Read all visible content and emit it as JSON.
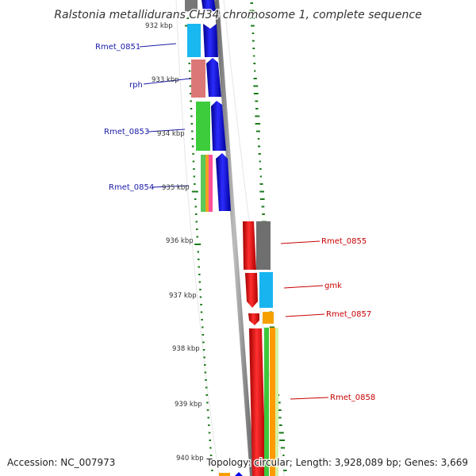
{
  "title": "Ralstonia metallidurans CH34 chromosome 1, complete sequence",
  "footer": {
    "accession": "Accession: NC_007973",
    "topology": "Topology: circular; Length: 3,928,089 bp; Genes: 3,669"
  },
  "kbp_labels": [
    "932 kbp",
    "933 kbp",
    "934 kbp",
    "935 kbp",
    "936 kbp",
    "937 kbp",
    "938 kbp",
    "939 kbp",
    "940 kbp"
  ],
  "gene_labels_left": [
    "Rmet_0851",
    "rph",
    "Rmet_0853",
    "Rmet_0854"
  ],
  "gene_labels_right": [
    "Rmet_0855",
    "gmk",
    "Rmet_0857",
    "Rmet_0858"
  ],
  "colors": {
    "cds_blue": "#0000ee",
    "cds_red": "#ff0000",
    "backbone": "#888888",
    "ticks": "#1a7a1a",
    "left_label": "#1a1aa8",
    "right_label": "#c80000"
  }
}
